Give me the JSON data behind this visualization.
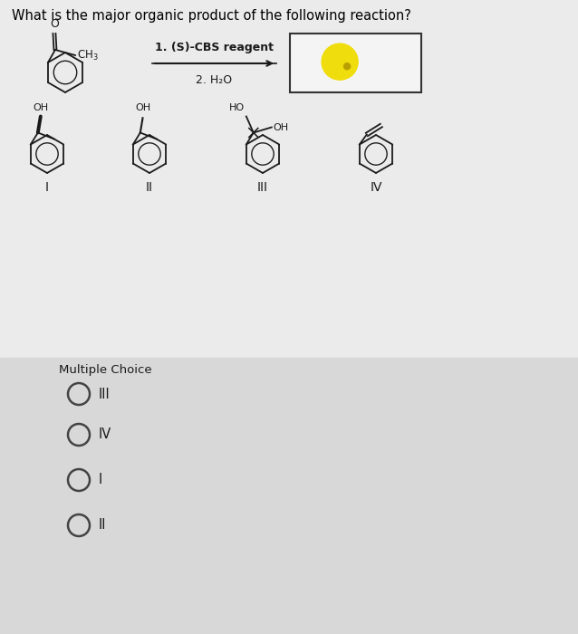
{
  "title": "What is the major organic product of the following reaction?",
  "title_fontsize": 10.5,
  "bg_color_top": "#ebebeb",
  "bg_color_bottom": "#d8d8d8",
  "reaction_conditions_1": "1. (S)-CBS reagent",
  "reaction_conditions_2": "2. H₂O",
  "answer_box_facecolor": "#f4f4f4",
  "answer_box_edgecolor": "#333333",
  "glow_color": "#f0dc00",
  "glow_dot_color": "#b8a000",
  "choices": [
    "III",
    "IV",
    "I",
    "II"
  ],
  "multiple_choice_label": "Multiple Choice",
  "struct_labels": [
    "I",
    "II",
    "III",
    "IV"
  ]
}
